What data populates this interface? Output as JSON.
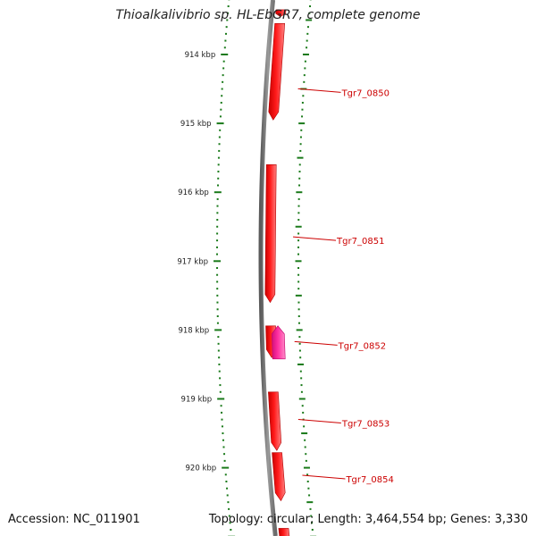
{
  "title": "Thioalkalivibrio sp. HL-EbGR7, complete genome",
  "footer": {
    "accession": "Accession: NC_011901",
    "topology": "Topology: circular; Length: 3,464,554 bp; Genes: 3,330"
  },
  "colors": {
    "backbone": "#808080",
    "gene": "#ff0000",
    "gene_highlight": "#ff1493",
    "ticks": "#1a7a1a",
    "gene_label": "#cc0000",
    "tick_label": "#222222"
  },
  "axis": {
    "unit": "kbp",
    "view_start_kbp": 913.55,
    "view_end_kbp": 920.95,
    "ticks_kbp": [
      914,
      915,
      916,
      917,
      918,
      919,
      920
    ],
    "tick_labels": [
      "914 kbp",
      "915 kbp",
      "916 kbp",
      "917 kbp",
      "918 kbp",
      "919 kbp",
      "920 kbp"
    ]
  },
  "genes": [
    {
      "label": "Tgr7_0850",
      "strand": "+",
      "start_kbp": 913.35,
      "end_kbp": 913.45,
      "row": "inner",
      "color": "#ff0000"
    },
    {
      "label": "Tgr7_0850",
      "strand": "+",
      "start_kbp": 913.55,
      "end_kbp": 914.95,
      "row": "inner",
      "color": "#ff0000"
    },
    {
      "label": "Tgr7_0851",
      "strand": "+",
      "start_kbp": 915.6,
      "end_kbp": 917.6,
      "row": "inner",
      "color": "#ff0000"
    },
    {
      "label": "Tgr7_0852",
      "strand": "+",
      "start_kbp": 917.94,
      "end_kbp": 918.4,
      "row": "inner",
      "color": "#ff0000"
    },
    {
      "label": "Tgr7_0852",
      "strand": "-",
      "start_kbp": 917.94,
      "end_kbp": 918.42,
      "row": "outer",
      "color": "#ff1493"
    },
    {
      "label": "Tgr7_0853",
      "strand": "+",
      "start_kbp": 918.9,
      "end_kbp": 919.75,
      "row": "inner",
      "color": "#ff0000"
    },
    {
      "label": "Tgr7_0854",
      "strand": "+",
      "start_kbp": 919.78,
      "end_kbp": 920.48,
      "row": "inner",
      "color": "#ff0000"
    },
    {
      "label": "",
      "strand": "+",
      "start_kbp": 920.88,
      "end_kbp": 921.1,
      "row": "inner",
      "color": "#ff0000"
    }
  ],
  "gene_labels": [
    {
      "text": "Tgr7_0850",
      "at_kbp": 914.55
    },
    {
      "text": "Tgr7_0851",
      "at_kbp": 916.7
    },
    {
      "text": "Tgr7_0852",
      "at_kbp": 918.22
    },
    {
      "text": "Tgr7_0853",
      "at_kbp": 919.35
    },
    {
      "text": "Tgr7_0854",
      "at_kbp": 920.16
    }
  ]
}
